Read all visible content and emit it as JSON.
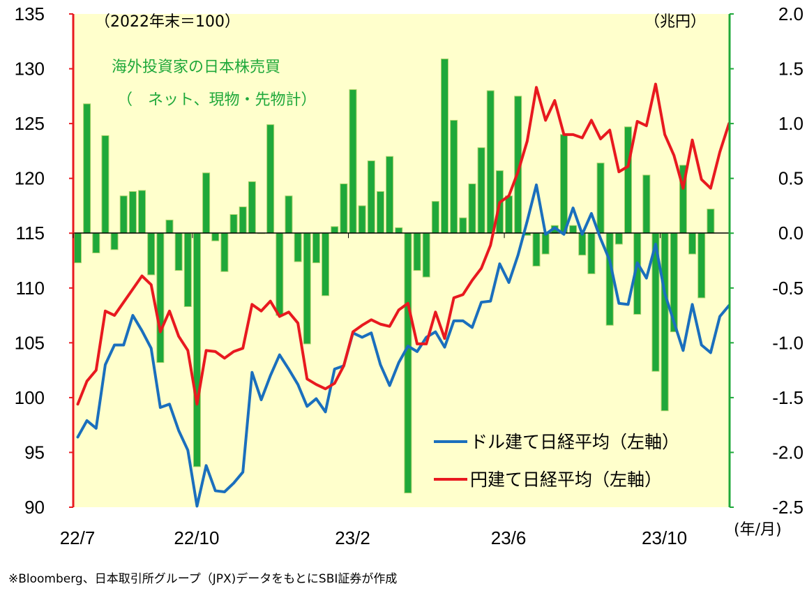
{
  "chart_data": {
    "type": "bar+line",
    "title": "",
    "left_unit_label": "（2022年末＝100）",
    "right_unit_label": "（兆円）",
    "x_unit_label": "(年/月)",
    "annotation_line1": "海外投資家の日本株売買",
    "annotation_line2": "（　ネット、現物・先物計）",
    "source_note": "※Bloomberg、日本取引所グループ（JPX)データをもとにSBI証券が作成",
    "left_axis": {
      "min": 90,
      "max": 135,
      "step": 5,
      "ticks": [
        "90",
        "95",
        "100",
        "105",
        "110",
        "115",
        "120",
        "125",
        "130",
        "135"
      ]
    },
    "right_axis": {
      "min": -2.5,
      "max": 2.0,
      "step": 0.5,
      "ticks": [
        "-2.5",
        "-2.0",
        "-1.5",
        "-1.0",
        "-0.5",
        "0.0",
        "0.5",
        "1.0",
        "1.5",
        "2.0"
      ]
    },
    "x_tick_labels": [
      "22/7",
      "22/10",
      "23/2",
      "23/6",
      "23/10"
    ],
    "x_tick_week_index": [
      0,
      13,
      30,
      47,
      64
    ],
    "bar_series": {
      "name": "海外投資家の日本株売買（ネット、現物・先物計）",
      "unit": "兆円",
      "color": "#1fa83a",
      "values": [
        -0.27,
        1.18,
        -0.18,
        0.89,
        -0.15,
        0.34,
        0.38,
        0.39,
        -0.38,
        -1.18,
        0.12,
        -0.34,
        -0.67,
        -2.13,
        0.55,
        -0.07,
        -0.35,
        0.17,
        0.24,
        0.47,
        0.0,
        0.99,
        -0.75,
        0.34,
        -0.26,
        -1.01,
        -0.27,
        -0.57,
        0.06,
        0.45,
        1.31,
        0.25,
        0.66,
        0.38,
        0.7,
        0.05,
        -2.37,
        -0.34,
        -0.4,
        0.29,
        1.59,
        1.03,
        0.14,
        0.45,
        0.78,
        1.3,
        0.57,
        0.34,
        1.25,
        -0.02,
        -0.3,
        -0.19,
        0.07,
        0.9,
        0.07,
        -0.2,
        -0.37,
        0.64,
        -0.84,
        -0.1,
        0.97,
        -0.74,
        0.53,
        -1.26,
        -1.62,
        -0.9,
        0.62,
        -0.19,
        -0.59,
        0.22
      ]
    },
    "line_series": [
      {
        "name": "ドル建て日経平均（左軸）",
        "color": "#1a6fbd",
        "values": [
          96.4,
          97.9,
          97.2,
          103.0,
          104.8,
          104.8,
          107.5,
          106.1,
          104.5,
          99.1,
          99.4,
          97.0,
          95.2,
          90.1,
          93.8,
          91.5,
          91.4,
          92.2,
          93.2,
          102.3,
          99.8,
          102.0,
          103.9,
          102.6,
          101.2,
          99.2,
          99.9,
          98.7,
          102.6,
          102.9,
          105.9,
          105.5,
          105.9,
          103.0,
          101.1,
          103.2,
          104.7,
          104.2,
          105.5,
          106.0,
          104.6,
          107.0,
          107.0,
          106.4,
          108.7,
          108.8,
          112.2,
          110.5,
          113.0,
          116.1,
          119.4,
          114.9,
          115.5,
          114.9,
          117.3,
          114.9,
          116.8,
          114.5,
          112.5,
          108.6,
          108.5,
          112.3,
          110.9,
          114.0,
          109.5,
          106.9,
          104.3,
          108.5,
          104.8,
          104.1,
          107.4,
          108.4
        ]
      },
      {
        "name": "円建て日経平均（左軸）",
        "color": "#e8191f",
        "values": [
          99.4,
          101.5,
          102.5,
          107.9,
          107.5,
          108.7,
          109.9,
          111.1,
          110.3,
          106.0,
          107.9,
          105.6,
          104.3,
          99.4,
          104.3,
          104.2,
          103.6,
          104.2,
          104.5,
          108.5,
          107.9,
          108.8,
          107.4,
          107.8,
          106.8,
          101.7,
          101.2,
          100.8,
          101.3,
          102.9,
          106.0,
          106.6,
          107.1,
          106.7,
          106.5,
          108.0,
          108.6,
          104.9,
          104.9,
          107.8,
          105.4,
          109.1,
          109.4,
          110.7,
          111.8,
          113.9,
          117.8,
          118.4,
          120.6,
          123.4,
          128.3,
          125.3,
          127.1,
          124.0,
          124.0,
          123.7,
          125.3,
          123.6,
          124.4,
          120.6,
          121.1,
          125.2,
          124.8,
          128.6,
          124.0,
          122.1,
          119.1,
          123.5,
          119.9,
          119.1,
          122.4,
          125.0
        ]
      }
    ],
    "legend": [
      "ドル建て日経平均（左軸）",
      "円建て日経平均（左軸）"
    ],
    "colors": {
      "plot_background": "#ffffcc",
      "left_axis": "#e8191f",
      "right_axis": "#1fa83a",
      "bar_fill": "#1fa83a",
      "bar_edge": "#a9d36a",
      "dollar_line": "#1a6fbd",
      "yen_line": "#e8191f"
    }
  }
}
